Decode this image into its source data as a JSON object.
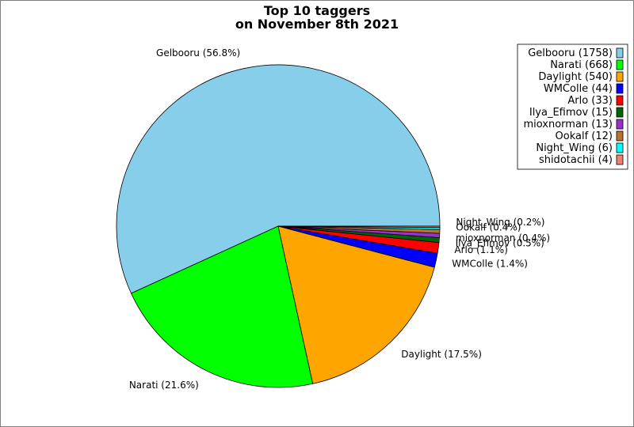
{
  "chart_data": {
    "type": "pie",
    "title_lines": [
      "Top 10 taggers",
      "on November 8th 2021"
    ],
    "slices": [
      {
        "name": "Gelbooru",
        "count": 1758,
        "percent": "56.8",
        "color": "#87ceeb"
      },
      {
        "name": "Narati",
        "count": 668,
        "percent": "21.6",
        "color": "#00ff00"
      },
      {
        "name": "Daylight",
        "count": 540,
        "percent": "17.5",
        "color": "#ffa500"
      },
      {
        "name": "WMColle",
        "count": 44,
        "percent": "1.4",
        "color": "#0000ff"
      },
      {
        "name": "Arlo",
        "count": 33,
        "percent": "1.1",
        "color": "#ff0000"
      },
      {
        "name": "Ilya_Efimov",
        "count": 15,
        "percent": "0.5",
        "color": "#006400"
      },
      {
        "name": "mioxnorman",
        "count": 13,
        "percent": "0.4",
        "color": "#9932cc"
      },
      {
        "name": "Ookalf",
        "count": 12,
        "percent": "0.4",
        "color": "#b87333"
      },
      {
        "name": "Night_Wing",
        "count": 6,
        "percent": "0.2",
        "color": "#00ffff"
      },
      {
        "name": "shidotachii",
        "count": 4,
        "percent": "0.1",
        "color": "#f08070"
      }
    ],
    "slice_labels": [
      "Gelbooru (56.8%)",
      "Narati (21.6%)",
      "Daylight (17.5%)",
      "WMColle (1.4%)",
      "Arlo (1.1%)",
      "Ilya_Efimov (0.5%)",
      "mioxnorman (0.4%)",
      "Ookalf (0.4%)",
      "Night_Wing (0.2%)"
    ],
    "legend": [
      "Gelbooru (1758)",
      "Narati (668)",
      "Daylight (540)",
      "WMColle (44)",
      "Arlo (33)",
      "Ilya_Efimov (15)",
      "mioxnorman (13)",
      "Ookalf (12)",
      "Night_Wing (6)",
      "shidotachii (4)"
    ],
    "legend_position": "top-right",
    "start": "3 o'clock, counter-clockwise"
  }
}
